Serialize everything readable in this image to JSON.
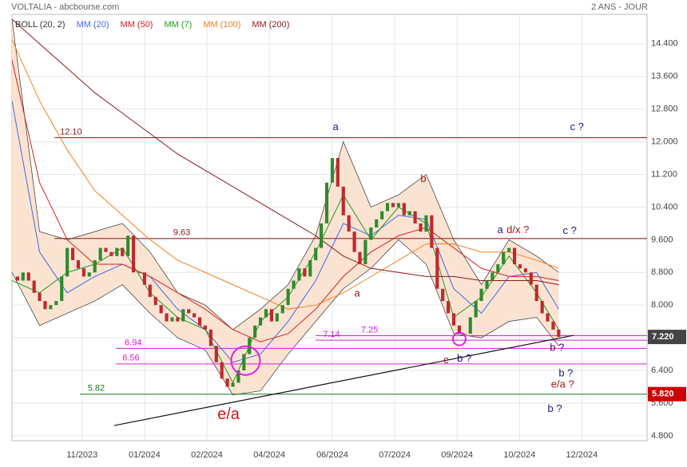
{
  "chart_data": {
    "type": "candlestick",
    "title": "VOLTALIA - abcbourse.com",
    "subtitle": "2 ANS - JOUR",
    "xlim": [
      0,
      115
    ],
    "ylim": [
      4.68,
      15.12
    ],
    "grid": true,
    "xticks": [
      {
        "value": 12.7,
        "label": "11/2023"
      },
      {
        "value": 24.0,
        "label": "01/2024"
      },
      {
        "value": 35.3,
        "label": "02/2024"
      },
      {
        "value": 46.6,
        "label": "04/2024"
      },
      {
        "value": 58.0,
        "label": "06/2024"
      },
      {
        "value": 69.3,
        "label": "07/2024"
      },
      {
        "value": 80.6,
        "label": "09/2024"
      },
      {
        "value": 91.9,
        "label": "10/2024"
      },
      {
        "value": 103.2,
        "label": "12/2024"
      }
    ],
    "yticks": [
      {
        "value": 4.8,
        "label": "4.800"
      },
      {
        "value": 5.6,
        "label": "5.600"
      },
      {
        "value": 6.4,
        "label": "6.400"
      },
      {
        "value": 7.2,
        "label": "7.200"
      },
      {
        "value": 8,
        "label": "8.000"
      },
      {
        "value": 8.8,
        "label": "8.800"
      },
      {
        "value": 9.6,
        "label": "9.600"
      },
      {
        "value": 10.4,
        "label": "10.400"
      },
      {
        "value": 11.2,
        "label": "11.200"
      },
      {
        "value": 12,
        "label": "12.000"
      },
      {
        "value": 12.8,
        "label": "12.800"
      },
      {
        "value": 13.6,
        "label": "13.600"
      },
      {
        "value": 14.4,
        "label": "14.400"
      }
    ],
    "candles": {
      "up_color": "#2e8b2e",
      "down_color": "#c0282d",
      "x": [
        0,
        1,
        2,
        3,
        4,
        5,
        6,
        7,
        8,
        9,
        10,
        11,
        12,
        13,
        14,
        15,
        16,
        17,
        18,
        19,
        20,
        21,
        22,
        23,
        24,
        25,
        26,
        27,
        28,
        29,
        30,
        31,
        32,
        33,
        34,
        35,
        36,
        37,
        38,
        39,
        40,
        41,
        42,
        43,
        44,
        45,
        46,
        47,
        48,
        49,
        50,
        51,
        52,
        53,
        54,
        55,
        56,
        57,
        58,
        59,
        60,
        61,
        62,
        63,
        64,
        65,
        66,
        67,
        68,
        69,
        70,
        71,
        72,
        73,
        74,
        75,
        76,
        77,
        78,
        79,
        80,
        81,
        82,
        83,
        84,
        85,
        86,
        87,
        88,
        89,
        90,
        91,
        92,
        93,
        94,
        95,
        96,
        97,
        98,
        99
      ],
      "values": [
        8.7,
        8.6,
        8.8,
        8.6,
        8.3,
        8.1,
        7.9,
        8.0,
        8.1,
        8.7,
        9.4,
        9.1,
        8.9,
        8.7,
        8.8,
        9.1,
        9.4,
        9.3,
        9.2,
        9.4,
        9.2,
        9.7,
        8.8,
        8.8,
        8.5,
        8.2,
        8.0,
        7.8,
        7.6,
        7.7,
        7.6,
        7.9,
        7.8,
        7.7,
        7.5,
        7.4,
        7.0,
        6.6,
        6.2,
        6.0,
        6.1,
        6.4,
        6.8,
        7.2,
        7.5,
        7.7,
        7.9,
        7.6,
        7.8,
        8.0,
        8.4,
        8.6,
        8.9,
        8.7,
        9.1,
        9.4,
        10.0,
        11.0,
        11.6,
        10.9,
        10.2,
        9.8,
        9.3,
        9.0,
        9.6,
        9.9,
        10.1,
        10.3,
        10.5,
        10.4,
        10.5,
        10.2,
        10.3,
        10.0,
        9.8,
        10.2,
        9.4,
        8.4,
        8.1,
        7.8,
        7.5,
        7.3,
        7.3,
        7.7,
        8.1,
        8.4,
        8.6,
        8.8,
        9.0,
        9.3,
        9.4,
        9.0,
        8.9,
        8.8,
        8.5,
        8.1,
        7.8,
        7.6,
        7.4,
        7.22
      ]
    },
    "bands": {
      "name": "BOLL (20, 2)",
      "color": "#333333",
      "fill": "#fbe3d2",
      "x": [
        0,
        5,
        10,
        15,
        20,
        25,
        30,
        35,
        40,
        45,
        50,
        55,
        60,
        65,
        70,
        75,
        80,
        85,
        90,
        95,
        99
      ],
      "upper": [
        15.0,
        9.8,
        9.6,
        9.8,
        10.0,
        9.3,
        8.3,
        8.0,
        7.4,
        7.9,
        8.5,
        9.7,
        12.0,
        10.4,
        10.7,
        11.2,
        9.6,
        8.5,
        9.6,
        9.2,
        8.8
      ],
      "lower": [
        8.8,
        7.5,
        7.8,
        8.1,
        8.5,
        7.8,
        7.2,
        6.9,
        5.8,
        5.9,
        6.8,
        7.6,
        8.4,
        8.9,
        9.6,
        9.0,
        7.3,
        7.2,
        7.6,
        7.7,
        7.0
      ]
    },
    "series": [
      {
        "name": "MM (20)",
        "color": "#4169e1",
        "x": [
          0,
          5,
          10,
          15,
          20,
          25,
          30,
          35,
          40,
          45,
          50,
          55,
          60,
          65,
          70,
          75,
          80,
          85,
          90,
          95,
          99
        ],
        "values": [
          13.0,
          9.3,
          8.3,
          8.7,
          9.0,
          8.7,
          7.9,
          7.4,
          6.6,
          6.8,
          7.6,
          8.6,
          10.0,
          9.7,
          10.2,
          10.1,
          8.4,
          7.8,
          8.7,
          8.8,
          7.9
        ]
      },
      {
        "name": "MM (50)",
        "color": "#d62020",
        "x": [
          0,
          5,
          10,
          15,
          20,
          25,
          30,
          35,
          40,
          45,
          50,
          55,
          60,
          65,
          70,
          75,
          80,
          85,
          90,
          95,
          99
        ],
        "values": [
          14.0,
          11.0,
          9.6,
          9.0,
          9.0,
          8.7,
          8.3,
          7.9,
          7.4,
          7.1,
          7.3,
          7.9,
          8.7,
          9.3,
          9.7,
          9.9,
          9.4,
          8.9,
          8.7,
          8.7,
          8.6
        ]
      },
      {
        "name": "MM (7)",
        "color": "#1f9a1f",
        "x": [
          0,
          5,
          10,
          15,
          20,
          25,
          30,
          35,
          40,
          45,
          50,
          55,
          60,
          65,
          70,
          75,
          80,
          85,
          90,
          95,
          99
        ],
        "values": [
          8.6,
          8.3,
          8.8,
          9.0,
          9.4,
          8.3,
          7.7,
          7.4,
          6.1,
          7.6,
          8.2,
          9.3,
          10.7,
          9.6,
          10.4,
          10.0,
          7.7,
          8.2,
          9.2,
          8.3,
          7.4
        ]
      },
      {
        "name": "MM (100)",
        "color": "#f08020",
        "x": [
          0,
          5,
          10,
          15,
          20,
          25,
          30,
          35,
          40,
          45,
          50,
          55,
          60,
          65,
          70,
          75,
          80,
          85,
          90,
          95,
          99
        ],
        "values": [
          14.5,
          13.0,
          11.8,
          10.8,
          10.2,
          9.6,
          9.1,
          8.8,
          8.5,
          8.2,
          7.9,
          8.0,
          8.3,
          8.7,
          9.1,
          9.5,
          9.5,
          9.3,
          9.3,
          9.1,
          8.9
        ]
      },
      {
        "name": "MM (200)",
        "color": "#8b1a1a",
        "x": [
          0,
          5,
          10,
          15,
          20,
          25,
          30,
          35,
          40,
          45,
          50,
          55,
          60,
          65,
          70,
          75,
          80,
          85,
          90,
          95,
          99
        ],
        "values": [
          15.0,
          14.4,
          13.8,
          13.2,
          12.7,
          12.2,
          11.7,
          11.3,
          10.9,
          10.5,
          10.1,
          9.7,
          9.2,
          8.9,
          8.8,
          8.7,
          8.7,
          8.6,
          8.6,
          8.6,
          8.5
        ]
      }
    ],
    "levels": [
      {
        "value": 12.1,
        "label": "12.10",
        "color": "#8b1a1a",
        "from": 7.7,
        "label_x": 8.7
      },
      {
        "value": 9.63,
        "label": "9.63",
        "color": "#8b1a1a",
        "from": 7.7,
        "label_x": 29.2
      },
      {
        "value": 7.25,
        "label": "7.25",
        "color": "#d020d0",
        "from": 55.0,
        "label_x": 63.2
      },
      {
        "value": 7.14,
        "label": "7.14",
        "color": "#d020d0",
        "from": 55.0,
        "label_x": 56.3
      },
      {
        "value": 6.94,
        "label": "6.94",
        "color": "#d020d0",
        "from": 18.8,
        "label_x": 20.4
      },
      {
        "value": 6.56,
        "label": "6.56",
        "color": "#d020d0",
        "from": 18.8,
        "label_x": 20.0
      },
      {
        "value": 5.82,
        "label": "5.82",
        "color": "#1a7a1a",
        "from": 12.3,
        "label_x": 13.7
      }
    ],
    "trendline": {
      "x": [
        18.5,
        101.7
      ],
      "values": [
        5.05,
        7.26
      ],
      "color": "#111111"
    },
    "circles": [
      {
        "x": 42.3,
        "y": 6.64,
        "color": "#e020e0"
      },
      {
        "x": 81.0,
        "y": 7.17,
        "color": "#e020e0"
      }
    ],
    "annotations": [
      {
        "text": "a",
        "x": 58.6,
        "y": 12.35,
        "color": "#1a1a80"
      },
      {
        "text": "b",
        "x": 74.5,
        "y": 11.08,
        "color": "#a01818"
      },
      {
        "text": "a",
        "x": 62.5,
        "y": 8.28,
        "color": "#a01818"
      },
      {
        "text": "c",
        "x": 78.6,
        "y": 6.64,
        "color": "#a01818"
      },
      {
        "text": "b ?",
        "x": 81.9,
        "y": 6.68,
        "color": "#1a1a80"
      },
      {
        "text": "a",
        "x": 88.4,
        "y": 9.83,
        "color": "#1a1a80"
      },
      {
        "text": "d/x ?",
        "x": 91.6,
        "y": 9.83,
        "color": "#a01818"
      },
      {
        "text": "c ?",
        "x": 102.3,
        "y": 12.35,
        "color": "#1a1a80"
      },
      {
        "text": "c ?",
        "x": 101.0,
        "y": 9.81,
        "color": "#1a1a80"
      },
      {
        "text": "b ?",
        "x": 98.7,
        "y": 6.95,
        "color": "#1a1a80"
      },
      {
        "text": "b ?",
        "x": 100.3,
        "y": 6.32,
        "color": "#1a1a80"
      },
      {
        "text": "e/a ?",
        "x": 99.7,
        "y": 6.05,
        "color": "#a01818"
      },
      {
        "text": "b ?",
        "x": 98.3,
        "y": 5.45,
        "color": "#1a1a80"
      },
      {
        "text": "e/a",
        "x": 39.2,
        "y": 5.31,
        "color": "#d01818",
        "big": true
      }
    ],
    "price_badges": [
      {
        "value": 7.22,
        "label": "7.220",
        "color": "#444444"
      },
      {
        "value": 5.82,
        "label": "5.820",
        "color": "#cc0000"
      }
    ]
  }
}
